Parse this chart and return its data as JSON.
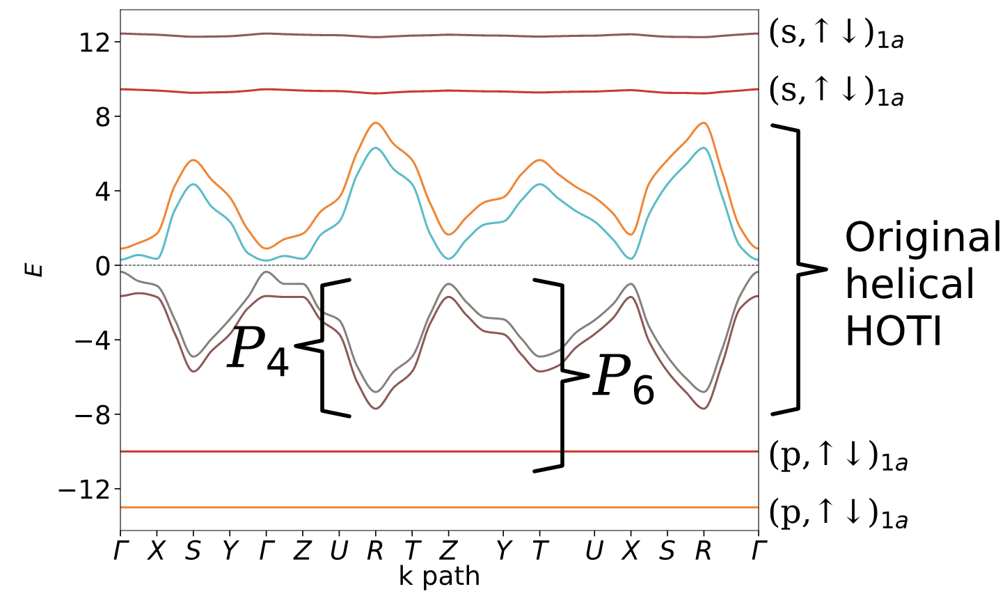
{
  "chart_data": {
    "type": "line",
    "xlabel": "k path",
    "ylabel": "E",
    "categories": [
      "Γ",
      null,
      "X",
      null,
      "S",
      null,
      "Y",
      null,
      "Γ",
      null,
      "Z",
      null,
      "U",
      null,
      "R",
      null,
      "T",
      null,
      "Z",
      null,
      null,
      "Y",
      null,
      "T",
      null,
      null,
      "U",
      null,
      "X",
      null,
      "S",
      null,
      "R",
      null,
      null,
      "Γ"
    ],
    "ylim": [
      -14.24,
      13.72
    ],
    "yticks": [
      {
        "value": -12,
        "label": "−12"
      },
      {
        "value": -8,
        "label": "−8"
      },
      {
        "value": -4,
        "label": "−4"
      },
      0,
      4,
      8,
      12
    ],
    "grid": false,
    "legend": false,
    "ref_lines": [
      {
        "axis": "y",
        "value": 0,
        "color": "#000000",
        "line_style": "dashed"
      }
    ],
    "series": [
      {
        "color": "#8c5a5a",
        "values": [
          12.44,
          12.41,
          12.38,
          12.32,
          12.27,
          12.28,
          12.3,
          12.37,
          12.44,
          12.41,
          12.38,
          12.36,
          12.35,
          12.3,
          12.25,
          12.29,
          12.33,
          12.35,
          12.38,
          12.36,
          12.34,
          12.33,
          12.3,
          12.28,
          12.3,
          12.32,
          12.33,
          12.37,
          12.4,
          12.33,
          12.27,
          12.26,
          12.25,
          12.32,
          12.39,
          12.44
        ]
      },
      {
        "color": "#cc3a2c",
        "values": [
          9.45,
          9.42,
          9.38,
          9.32,
          9.26,
          9.28,
          9.3,
          9.37,
          9.45,
          9.42,
          9.38,
          9.36,
          9.35,
          9.29,
          9.23,
          9.28,
          9.33,
          9.35,
          9.38,
          9.36,
          9.34,
          9.33,
          9.3,
          9.28,
          9.3,
          9.32,
          9.33,
          9.37,
          9.4,
          9.33,
          9.26,
          9.25,
          9.23,
          9.31,
          9.38,
          9.45
        ]
      },
      {
        "color": "#ee8636",
        "values": [
          0.9,
          1.2,
          1.7,
          4.3,
          5.65,
          4.6,
          3.65,
          1.9,
          0.9,
          1.4,
          1.7,
          2.9,
          3.65,
          6.1,
          7.65,
          6.5,
          5.65,
          3.3,
          1.65,
          2.6,
          3.4,
          3.65,
          4.9,
          5.65,
          4.9,
          4.2,
          3.65,
          2.8,
          1.65,
          4.4,
          5.65,
          6.65,
          7.65,
          5.0,
          2.0,
          0.9
        ]
      },
      {
        "color": "#5bbcc8",
        "values": [
          0.3,
          0.55,
          0.35,
          3.0,
          4.35,
          3.15,
          2.35,
          0.65,
          0.25,
          0.5,
          0.35,
          1.65,
          2.35,
          4.9,
          6.3,
          5.15,
          4.35,
          1.65,
          0.35,
          1.4,
          2.2,
          2.35,
          3.5,
          4.35,
          3.6,
          2.9,
          2.35,
          1.4,
          0.35,
          2.75,
          4.35,
          5.4,
          6.3,
          3.7,
          1.0,
          0.3
        ]
      },
      {
        "color": "#878080",
        "values": [
          -0.35,
          -0.85,
          -1.1,
          -2.95,
          -4.9,
          -3.95,
          -2.9,
          -1.7,
          -0.35,
          -1.0,
          -1.0,
          -2.45,
          -2.95,
          -5.45,
          -6.8,
          -5.7,
          -4.9,
          -2.6,
          -1.0,
          -2.0,
          -2.8,
          -2.9,
          -3.95,
          -4.9,
          -4.6,
          -3.6,
          -2.95,
          -2.1,
          -1.0,
          -3.3,
          -4.9,
          -6.05,
          -6.8,
          -4.5,
          -1.6,
          -0.35
        ]
      },
      {
        "color": "#8c5a55",
        "values": [
          -1.65,
          -1.5,
          -1.7,
          -3.7,
          -5.7,
          -4.6,
          -3.7,
          -2.3,
          -1.65,
          -1.7,
          -1.7,
          -2.95,
          -3.7,
          -6.3,
          -7.7,
          -6.55,
          -5.7,
          -3.1,
          -1.7,
          -2.7,
          -3.55,
          -3.7,
          -4.8,
          -5.7,
          -5.4,
          -4.4,
          -3.7,
          -2.85,
          -1.7,
          -4.1,
          -5.7,
          -6.8,
          -7.7,
          -5.3,
          -2.3,
          -1.65
        ]
      },
      {
        "color": "#cc3a2c",
        "values": [
          -10.0,
          -10.0,
          -10.0,
          -10.0,
          -10.0,
          -10.0,
          -10.0,
          -10.0,
          -10.0,
          -10.0,
          -10.0,
          -10.0,
          -10.0,
          -10.0,
          -10.0,
          -10.0,
          -10.0,
          -10.0,
          -10.0,
          -10.0,
          -10.0,
          -10.0,
          -10.0,
          -10.0,
          -10.0,
          -10.0,
          -10.0,
          -10.0,
          -10.0,
          -10.0,
          -10.0,
          -10.0,
          -10.0,
          -10.0,
          -10.0,
          -10.0
        ]
      },
      {
        "color": "#ee8636",
        "values": [
          -13.0,
          -13.0,
          -13.0,
          -13.0,
          -13.0,
          -13.0,
          -13.0,
          -13.0,
          -13.0,
          -13.0,
          -13.0,
          -13.0,
          -13.0,
          -13.0,
          -13.0,
          -13.0,
          -13.0,
          -13.0,
          -13.0,
          -13.0,
          -13.0,
          -13.0,
          -13.0,
          -13.0,
          -13.0,
          -13.0,
          -13.0,
          -13.0,
          -13.0,
          -13.0,
          -13.0,
          -13.0,
          -13.0,
          -13.0,
          -13.0,
          -13.0
        ]
      }
    ],
    "annotations": [
      "(s,↑↓)$_{1a}$",
      "(s,↑↓)$_{1a}$",
      "(p,↑↓)$_{1a}$",
      "(p,↑↓)$_{1a}$",
      "Original\nhelical\nHOTI",
      "P$_{4}$",
      "P$_{6}$"
    ]
  }
}
